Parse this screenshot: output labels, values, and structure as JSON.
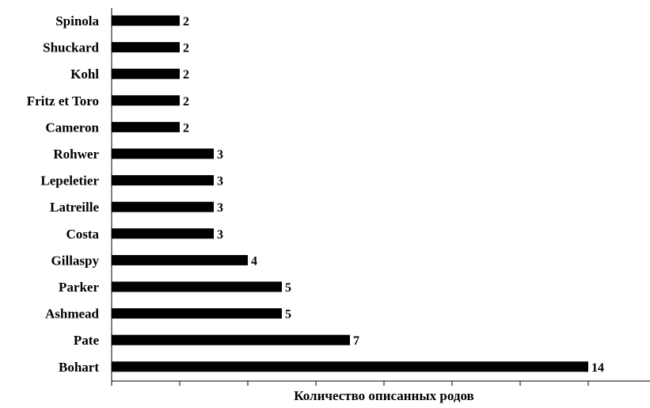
{
  "chart_data": {
    "type": "bar",
    "orientation": "horizontal",
    "categories": [
      "Spinola",
      "Shuckard",
      "Kohl",
      "Fritz et Toro",
      "Cameron",
      "Rohwer",
      "Lepeletier",
      "Latreille",
      "Costa",
      "Gillaspy",
      "Parker",
      "Ashmead",
      "Pate",
      "Bohart"
    ],
    "values": [
      2,
      2,
      2,
      2,
      2,
      3,
      3,
      3,
      3,
      4,
      5,
      5,
      7,
      14
    ],
    "xlabel": "Количество описанных родов",
    "ylabel": "",
    "xlim": [
      0,
      16
    ],
    "grid": false,
    "legend": "none",
    "bar_color": "#000000",
    "data_labels": true,
    "x_tick_labels_visible": false
  }
}
